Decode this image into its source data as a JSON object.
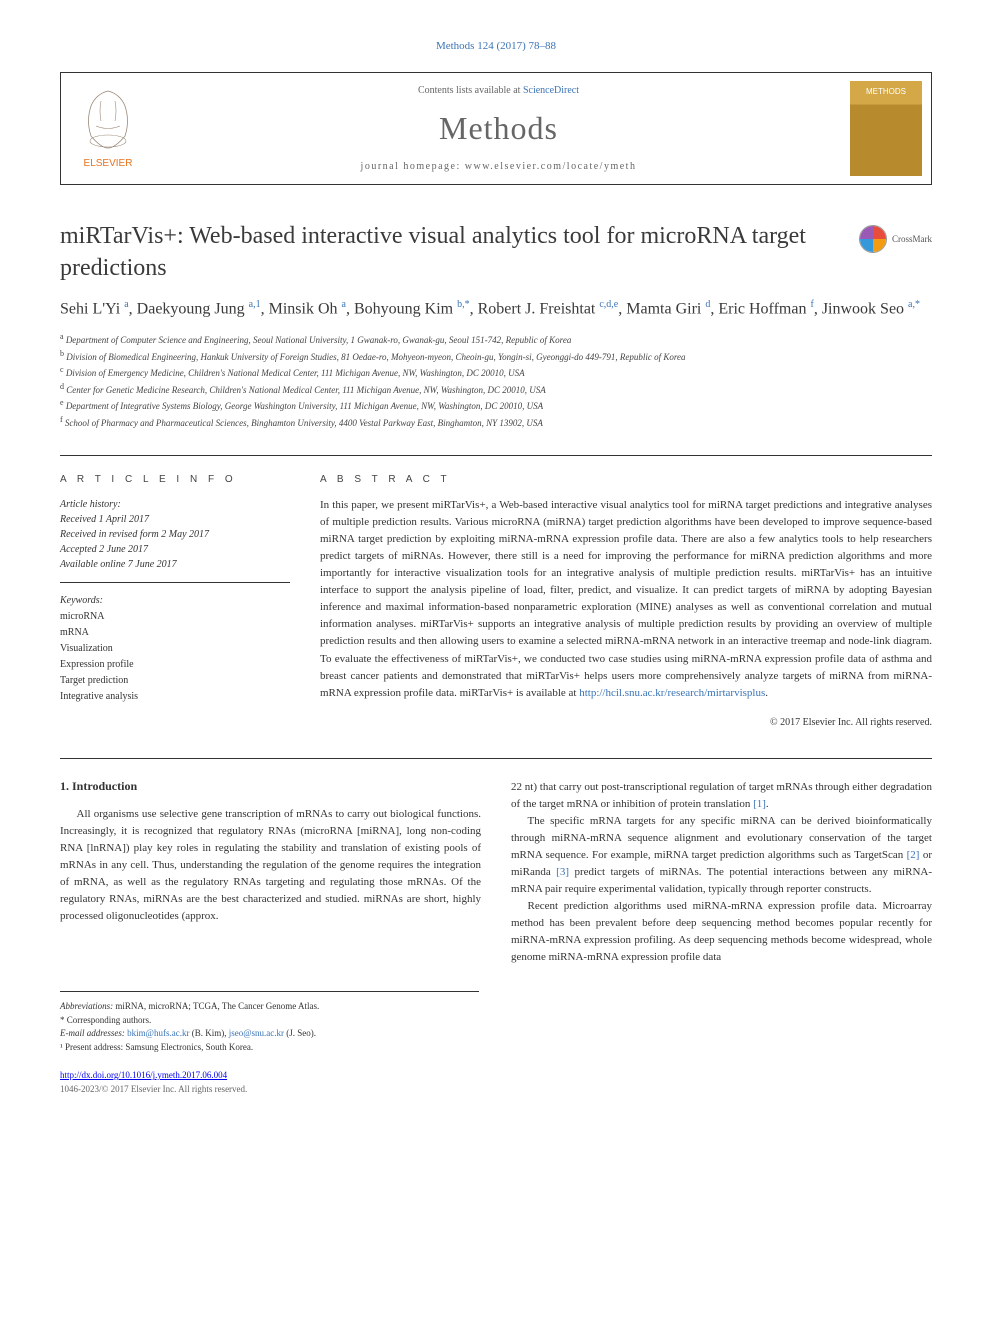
{
  "citation": "Methods 124 (2017) 78–88",
  "header": {
    "contents_prefix": "Contents lists available at ",
    "contents_link": "ScienceDirect",
    "journal": "Methods",
    "homepage_prefix": "journal homepage: ",
    "homepage_url": "www.elsevier.com/locate/ymeth"
  },
  "title": "miRTarVis+: Web-based interactive visual analytics tool for microRNA target predictions",
  "crossmark": "CrossMark",
  "authors_html": "Sehi L'Yi <sup>a</sup>, Daekyoung Jung <sup>a,1</sup>, Minsik Oh <sup>a</sup>, Bohyoung Kim <sup>b,*</sup>, Robert J. Freishtat <sup>c,d,e</sup>, Mamta Giri <sup>d</sup>, Eric Hoffman <sup>f</sup>, Jinwook Seo <sup>a,*</sup>",
  "affiliations": [
    {
      "label": "a",
      "text": "Department of Computer Science and Engineering, Seoul National University, 1 Gwanak-ro, Gwanak-gu, Seoul 151-742, Republic of Korea"
    },
    {
      "label": "b",
      "text": "Division of Biomedical Engineering, Hankuk University of Foreign Studies, 81 Oedae-ro, Mohyeon-myeon, Cheoin-gu, Yongin-si, Gyeonggi-do 449-791, Republic of Korea"
    },
    {
      "label": "c",
      "text": "Division of Emergency Medicine, Children's National Medical Center, 111 Michigan Avenue, NW, Washington, DC 20010, USA"
    },
    {
      "label": "d",
      "text": "Center for Genetic Medicine Research, Children's National Medical Center, 111 Michigan Avenue, NW, Washington, DC 20010, USA"
    },
    {
      "label": "e",
      "text": "Department of Integrative Systems Biology, George Washington University, 111 Michigan Avenue, NW, Washington, DC 20010, USA"
    },
    {
      "label": "f",
      "text": "School of Pharmacy and Pharmaceutical Sciences, Binghamton University, 4400 Vestal Parkway East, Binghamton, NY 13902, USA"
    }
  ],
  "article_info": {
    "header": "A R T I C L E   I N F O",
    "history_label": "Article history:",
    "history": [
      "Received 1 April 2017",
      "Received in revised form 2 May 2017",
      "Accepted 2 June 2017",
      "Available online 7 June 2017"
    ],
    "keywords_label": "Keywords:",
    "keywords": [
      "microRNA",
      "mRNA",
      "Visualization",
      "Expression profile",
      "Target prediction",
      "Integrative analysis"
    ]
  },
  "abstract": {
    "header": "A B S T R A C T",
    "text": "In this paper, we present miRTarVis+, a Web-based interactive visual analytics tool for miRNA target predictions and integrative analyses of multiple prediction results. Various microRNA (miRNA) target prediction algorithms have been developed to improve sequence-based miRNA target prediction by exploiting miRNA-mRNA expression profile data. There are also a few analytics tools to help researchers predict targets of miRNAs. However, there still is a need for improving the performance for miRNA prediction algorithms and more importantly for interactive visualization tools for an integrative analysis of multiple prediction results. miRTarVis+ has an intuitive interface to support the analysis pipeline of load, filter, predict, and visualize. It can predict targets of miRNA by adopting Bayesian inference and maximal information-based nonparametric exploration (MINE) analyses as well as conventional correlation and mutual information analyses. miRTarVis+ supports an integrative analysis of multiple prediction results by providing an overview of multiple prediction results and then allowing users to examine a selected miRNA-mRNA network in an interactive treemap and node-link diagram. To evaluate the effectiveness of miRTarVis+, we conducted two case studies using miRNA-mRNA expression profile data of asthma and breast cancer patients and demonstrated that miRTarVis+ helps users more comprehensively analyze targets of miRNA from miRNA-mRNA expression profile data. miRTarVis+ is available at ",
    "link": "http://hcil.snu.ac.kr/research/mirtarvisplus",
    "tail": "."
  },
  "copyright": "© 2017 Elsevier Inc. All rights reserved.",
  "intro": {
    "heading": "1. Introduction",
    "p1": "All organisms use selective gene transcription of mRNAs to carry out biological functions. Increasingly, it is recognized that regulatory RNAs (microRNA [miRNA], long non-coding RNA [lnRNA]) play key roles in regulating the stability and translation of existing pools of mRNAs in any cell. Thus, understanding the regulation of the genome requires the integration of mRNA, as well as the regulatory RNAs targeting and regulating those mRNAs. Of the regulatory RNAs, miRNAs are the best characterized and studied. miRNAs are short, highly processed oligonucleotides (approx.",
    "p2_a": "22 nt) that carry out post-transcriptional regulation of target mRNAs through either degradation of the target mRNA or inhibition of protein translation ",
    "p2_ref1": "[1]",
    "p2_b": ".",
    "p3_a": "The specific mRNA targets for any specific miRNA can be derived bioinformatically through miRNA-mRNA sequence alignment and evolutionary conservation of the target mRNA sequence. For example, miRNA target prediction algorithms such as TargetScan ",
    "p3_ref2": "[2]",
    "p3_b": " or miRanda ",
    "p3_ref3": "[3]",
    "p3_c": " predict targets of miRNAs. The potential interactions between any miRNA-mRNA pair require experimental validation, typically through reporter constructs.",
    "p4": "Recent prediction algorithms used miRNA-mRNA expression profile data. Microarray method has been prevalent before deep sequencing method becomes popular recently for miRNA-mRNA expression profiling. As deep sequencing methods become widespread, whole genome miRNA-mRNA expression profile data"
  },
  "footnotes": {
    "abbrev_label": "Abbreviations:",
    "abbrev": " miRNA, microRNA; TCGA, The Cancer Genome Atlas.",
    "corr": "* Corresponding authors.",
    "email_label": "E-mail addresses:",
    "email1": "bkim@hufs.ac.kr",
    "email1_name": " (B. Kim), ",
    "email2": "jseo@snu.ac.kr",
    "email2_name": " (J. Seo).",
    "present": "¹ Present address: Samsung Electronics, South Korea."
  },
  "doi": {
    "url": "http://dx.doi.org/10.1016/j.ymeth.2017.06.004",
    "issn": "1046-2023/© 2017 Elsevier Inc. All rights reserved."
  }
}
